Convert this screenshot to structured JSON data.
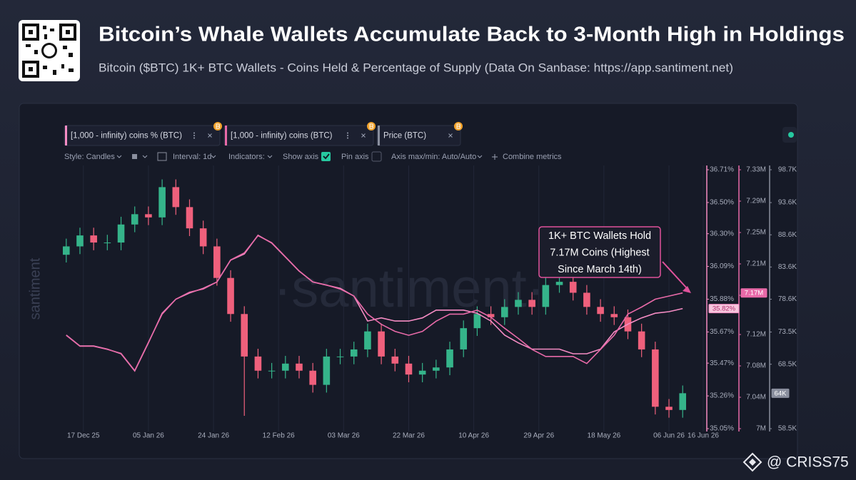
{
  "header": {
    "title": "Bitcoin’s Whale Wallets Accumulate Back to 3-Month High in Holdings",
    "subtitle": "Bitcoin ($BTC) 1K+ BTC Wallets - Coins Held & Percentage of Supply (Data On Sanbase: https://app.santiment.net)"
  },
  "toolbar": [
    "Style: Candles",
    "Interval: 1d",
    "Indicators:",
    "Show axis",
    "Pin axis",
    "Axis max/min: Auto/Auto",
    "Combine metrics"
  ],
  "watermark": {
    "side": "santiment",
    "center": "·santiment·"
  },
  "footer": "@ CRISS75",
  "chart_data": {
    "type": "candlestick",
    "x": [
      "2025-12-12",
      "2025-12-16",
      "2025-12-20",
      "2025-12-24",
      "2025-12-28",
      "2026-01-01",
      "2026-01-05",
      "2026-01-09",
      "2026-01-13",
      "2026-01-17",
      "2026-01-21",
      "2026-01-25",
      "2026-01-29",
      "2026-02-02",
      "2026-02-06",
      "2026-02-10",
      "2026-02-14",
      "2026-02-18",
      "2026-02-22",
      "2026-02-26",
      "2026-03-02",
      "2026-03-06",
      "2026-03-10",
      "2026-03-14",
      "2026-03-18",
      "2026-03-22",
      "2026-03-26",
      "2026-03-30",
      "2026-04-03",
      "2026-04-07",
      "2026-04-11",
      "2026-04-15",
      "2026-04-19",
      "2026-04-23",
      "2026-04-27",
      "2026-05-01",
      "2026-05-05",
      "2026-05-09",
      "2026-05-13",
      "2026-05-17",
      "2026-05-21",
      "2026-05-25",
      "2026-05-29",
      "2026-06-02",
      "2026-06-06",
      "2026-06-10"
    ],
    "xlim": [
      "2025-12-11",
      "2026-06-16"
    ],
    "xticks": [
      {
        "value": "2025-12-17",
        "label": "17 Dec 25"
      },
      {
        "value": "2026-01-05",
        "label": "05 Jan 26"
      },
      {
        "value": "2026-01-24",
        "label": "24 Jan 26"
      },
      {
        "value": "2026-02-12",
        "label": "12 Feb 26"
      },
      {
        "value": "2026-03-03",
        "label": "03 Mar 26"
      },
      {
        "value": "2026-03-22",
        "label": "22 Mar 26"
      },
      {
        "value": "2026-04-10",
        "label": "10 Apr 26"
      },
      {
        "value": "2026-04-29",
        "label": "29 Apr 26"
      },
      {
        "value": "2026-05-18",
        "label": "18 May 26"
      },
      {
        "value": "2026-06-06",
        "label": "06 Jun 26"
      },
      {
        "value": "2026-06-16",
        "label": "16 Jun 26"
      }
    ],
    "grid": "x",
    "ylim": [
      35.05,
      36.71
    ],
    "yticks": [
      {
        "value": 36.71,
        "label": "36.71%"
      },
      {
        "value": 36.5,
        "label": "36.50%"
      },
      {
        "value": 36.3,
        "label": "36.30%"
      },
      {
        "value": 36.09,
        "label": "36.09%"
      },
      {
        "value": 35.88,
        "label": "35.88%"
      },
      {
        "value": 35.67,
        "label": "35.67%"
      },
      {
        "value": 35.47,
        "label": "35.47%"
      },
      {
        "value": 35.26,
        "label": "35.26%"
      },
      {
        "value": 35.05,
        "label": "35.05%"
      }
    ],
    "y2lim": [
      7000000,
      7330000
    ],
    "y2ticks": [
      {
        "value": 7330000,
        "label": "7.33M"
      },
      {
        "value": 7290000,
        "label": "7.29M"
      },
      {
        "value": 7250000,
        "label": "7.25M"
      },
      {
        "value": 7210000,
        "label": "7.21M"
      },
      {
        "value": 7170000,
        "label": "7.17M"
      },
      {
        "value": 7120000,
        "label": "7.12M"
      },
      {
        "value": 7080000,
        "label": "7.08M"
      },
      {
        "value": 7040000,
        "label": "7.04M"
      },
      {
        "value": 7000000,
        "label": "7M"
      }
    ],
    "y3lim": [
      58500,
      98700
    ],
    "y3ticks": [
      {
        "value": 98700,
        "label": "98.7K"
      },
      {
        "value": 93600,
        "label": "93.6K"
      },
      {
        "value": 88600,
        "label": "88.6K"
      },
      {
        "value": 83600,
        "label": "83.6K"
      },
      {
        "value": 78600,
        "label": "78.6K"
      },
      {
        "value": 73500,
        "label": "73.5K"
      },
      {
        "value": 68500,
        "label": "68.5K"
      },
      {
        "value": 58500,
        "label": "58.5K"
      }
    ],
    "series": [
      {
        "name": "[1,000 - infinity) coins % (BTC)",
        "type": "line",
        "axis": "y",
        "color": "#f58cc4",
        "last_label": "35.82%",
        "values": [
          35.65,
          35.58,
          35.58,
          35.56,
          35.53,
          35.42,
          35.6,
          35.79,
          35.88,
          35.92,
          35.95,
          35.99,
          36.13,
          36.17,
          36.29,
          36.24,
          36.15,
          36.06,
          35.99,
          35.97,
          35.95,
          35.9,
          35.74,
          35.76,
          35.74,
          35.74,
          35.76,
          35.81,
          35.81,
          35.81,
          35.79,
          35.74,
          35.65,
          35.6,
          35.56,
          35.56,
          35.56,
          35.53,
          35.53,
          35.56,
          35.67,
          35.72,
          35.76,
          35.79,
          35.8,
          35.82
        ]
      },
      {
        "name": "[1,000 - infinity) coins (BTC)",
        "type": "line",
        "axis": "y2",
        "color": "#e86aa8",
        "last_label": "7.17M",
        "values": [
          7119000,
          7105000,
          7105000,
          7101000,
          7096000,
          7074000,
          7110000,
          7146000,
          7165000,
          7174000,
          7178000,
          7187000,
          7215000,
          7224000,
          7246000,
          7237000,
          7219000,
          7201000,
          7187000,
          7183000,
          7178000,
          7169000,
          7146000,
          7133000,
          7124000,
          7119000,
          7124000,
          7137000,
          7146000,
          7146000,
          7151000,
          7142000,
          7128000,
          7115000,
          7101000,
          7092000,
          7092000,
          7092000,
          7083000,
          7101000,
          7119000,
          7146000,
          7155000,
          7165000,
          7169000,
          7173000
        ]
      },
      {
        "name": "Price (BTC)",
        "type": "candlestick",
        "axis": "y3",
        "color": "#8a8f9e",
        "up_color": "#35b48a",
        "down_color": "#ef607c",
        "last_label": "64K",
        "open": [
          85500,
          86800,
          88500,
          87400,
          87400,
          90200,
          91800,
          91300,
          96000,
          92900,
          89600,
          86800,
          81900,
          76300,
          69700,
          67500,
          67500,
          68600,
          67500,
          65300,
          69700,
          69700,
          70800,
          73600,
          69700,
          68600,
          66900,
          67500,
          68000,
          70800,
          74100,
          76300,
          75800,
          77400,
          78500,
          77400,
          80800,
          81300,
          79600,
          77400,
          76300,
          75800,
          73600,
          70800,
          61900,
          61400
        ],
        "high": [
          88000,
          89700,
          89700,
          88600,
          91400,
          93000,
          93000,
          97200,
          97200,
          94100,
          90800,
          88000,
          83100,
          77500,
          70900,
          68700,
          69800,
          69800,
          68700,
          70900,
          70900,
          72000,
          74800,
          74800,
          70900,
          69800,
          68700,
          69200,
          72000,
          75300,
          77500,
          77500,
          78600,
          79700,
          79700,
          82000,
          82500,
          82500,
          80800,
          78600,
          77500,
          77000,
          74800,
          72000,
          63100,
          65200
        ],
        "low": [
          84300,
          85600,
          86200,
          86200,
          86200,
          89000,
          90100,
          90100,
          91700,
          88400,
          85600,
          80700,
          75100,
          60500,
          66300,
          66300,
          66300,
          66300,
          64100,
          64100,
          68500,
          68500,
          69600,
          68500,
          67400,
          65700,
          65700,
          66300,
          66800,
          69600,
          72900,
          74600,
          74600,
          76200,
          76200,
          76200,
          79600,
          78400,
          76200,
          75100,
          74600,
          72400,
          69600,
          60700,
          60200,
          60200
        ],
        "close": [
          86800,
          88500,
          87400,
          87400,
          90200,
          91800,
          91300,
          96000,
          92900,
          89600,
          86800,
          81900,
          76300,
          69700,
          67500,
          67500,
          68600,
          67500,
          65300,
          69700,
          69700,
          70800,
          73600,
          69700,
          68600,
          66900,
          67500,
          68000,
          70800,
          74100,
          76300,
          75800,
          77400,
          78500,
          77400,
          80800,
          81300,
          79600,
          77400,
          76300,
          75800,
          73600,
          70800,
          61900,
          61400,
          64000
        ]
      }
    ],
    "annotation": {
      "lines": [
        "1K+ BTC Wallets Hold",
        "7.17M Coins (Highest",
        "Since March 14th)"
      ],
      "color": "#e0529b"
    }
  }
}
